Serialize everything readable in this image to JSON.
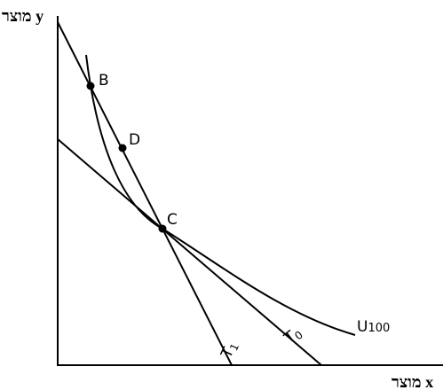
{
  "axes": {
    "y_label": "מוצר y",
    "x_label": "מוצר x"
  },
  "points": [
    {
      "label": "B"
    },
    {
      "label": "D"
    },
    {
      "label": "C"
    }
  ],
  "curves": [
    {
      "label": "U",
      "subscript": "100"
    },
    {
      "label": "T",
      "subscript": "0"
    },
    {
      "label": "T",
      "subscript": "1"
    }
  ]
}
